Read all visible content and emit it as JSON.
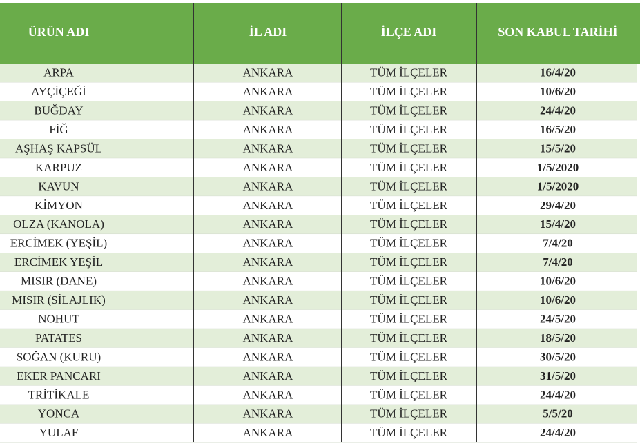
{
  "table": {
    "headers": [
      "ÜRÜN ADI",
      "İL ADI",
      "İLÇE ADI",
      "SON KABUL TARİHİ"
    ],
    "rows": [
      [
        "ARPA",
        "ANKARA",
        "TÜM İLÇELER",
        "16/4/20"
      ],
      [
        "AYÇİÇEĞİ",
        "ANKARA",
        "TÜM İLÇELER",
        "10/6/20"
      ],
      [
        "BUĞDAY",
        "ANKARA",
        "TÜM İLÇELER",
        "24/4/20"
      ],
      [
        "FİĞ",
        "ANKARA",
        "TÜM İLÇELER",
        "16/5/20"
      ],
      [
        "AŞHAŞ KAPSÜL",
        "ANKARA",
        "TÜM İLÇELER",
        "15/5/20"
      ],
      [
        "KARPUZ",
        "ANKARA",
        "TÜM İLÇELER",
        "1/5/2020"
      ],
      [
        "KAVUN",
        "ANKARA",
        "TÜM İLÇELER",
        "1/5/2020"
      ],
      [
        "KİMYON",
        "ANKARA",
        "TÜM İLÇELER",
        "29/4/20"
      ],
      [
        "OLZA (KANOLA)",
        "ANKARA",
        "TÜM İLÇELER",
        "15/4/20"
      ],
      [
        "ERCİMEK (YEŞİL)",
        "ANKARA",
        "TÜM İLÇELER",
        "7/4/20"
      ],
      [
        "ERCİMEK YEŞİL",
        "ANKARA",
        "TÜM İLÇELER",
        "7/4/20"
      ],
      [
        "MISIR (DANE)",
        "ANKARA",
        "TÜM İLÇELER",
        "10/6/20"
      ],
      [
        "MISIR (SİLAJLIK)",
        "ANKARA",
        "TÜM İLÇELER",
        "10/6/20"
      ],
      [
        "NOHUT",
        "ANKARA",
        "TÜM İLÇELER",
        "24/5/20"
      ],
      [
        "PATATES",
        "ANKARA",
        "TÜM İLÇELER",
        "18/5/20"
      ],
      [
        "SOĞAN (KURU)",
        "ANKARA",
        "TÜM İLÇELER",
        "30/5/20"
      ],
      [
        "EKER PANCARI",
        "ANKARA",
        "TÜM İLÇELER",
        "31/5/20"
      ],
      [
        "TRİTİKALE",
        "ANKARA",
        "TÜM İLÇELER",
        "24/4/20"
      ],
      [
        "YONCA",
        "ANKARA",
        "TÜM İLÇELER",
        "5/5/20"
      ],
      [
        "YULAF",
        "ANKARA",
        "TÜM İLÇELER",
        "24/4/20"
      ]
    ]
  }
}
